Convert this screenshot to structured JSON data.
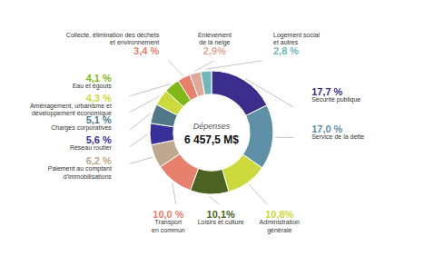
{
  "chart_data": {
    "type": "pie",
    "categories": [
      "Sécurité publique",
      "Service de la dette",
      "Administration\ngénérale",
      "Loisirs et culture",
      "Transport\nen commun",
      "Paiement au comptant\nd'immobilisations",
      "Réseau routier",
      "Charges corporatives",
      "Aménagement, urbanisme et\ndéveloppement économique",
      "Eau et égouts",
      "Collecte, élimination des déchets\net environnement",
      "Enlèvement\nde la neige",
      "Logement social\net autres"
    ],
    "values": [
      17.7,
      17.0,
      10.8,
      10.1,
      10.0,
      6.2,
      5.6,
      5.1,
      4.3,
      4.1,
      3.4,
      2.9,
      2.8
    ],
    "value_labels": [
      "17,7 %",
      "17,0 %",
      "10,8%",
      "10,1%",
      "10,0 %",
      "6,2 %",
      "5,6 %",
      "5,1 %",
      "4,3 %",
      "4,1 %",
      "3,4 %",
      "2,9%",
      "2,8 %"
    ],
    "colors": [
      "#3b2d8c",
      "#5e90a8",
      "#ccd93a",
      "#4a6320",
      "#e8806e",
      "#c0a890",
      "#38309a",
      "#527888",
      "#ccd93a",
      "#80b818",
      "#e8806e",
      "#e0a898",
      "#70b8b8"
    ],
    "data_labels": true,
    "annotations": [
      "Dépenses",
      "6 457,5 M$"
    ]
  }
}
